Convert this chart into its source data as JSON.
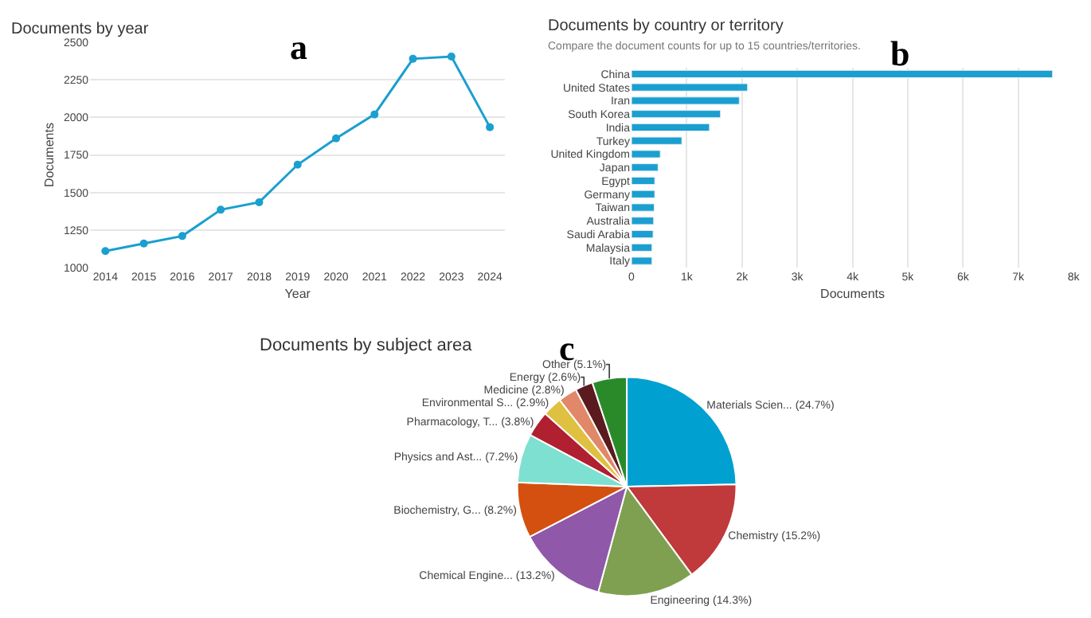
{
  "chart_data": [
    {
      "type": "line",
      "title": "Documents by year",
      "xlabel": "Year",
      "ylabel": "Documents",
      "annotations": [
        "a"
      ],
      "categories": [
        "2014",
        "2015",
        "2016",
        "2017",
        "2018",
        "2019",
        "2020",
        "2021",
        "2022",
        "2023",
        "2024"
      ],
      "series": [
        {
          "color": "#1a9fd0",
          "values": [
            1110,
            1160,
            1210,
            1385,
            1435,
            1685,
            1860,
            2020,
            2390,
            2405,
            1935
          ]
        }
      ],
      "ylim": [
        1000,
        2500
      ],
      "yticks": [
        1000,
        1250,
        1500,
        1750,
        2000,
        2250,
        2500
      ],
      "grid": "y",
      "marker": "circle"
    },
    {
      "type": "bar",
      "orientation": "horizontal",
      "title": "Documents by country or territory",
      "subtitle": "Compare the document counts for up to 15 countries/territories.",
      "xlabel": "Documents",
      "annotations": [
        "b"
      ],
      "categories": [
        "China",
        "United States",
        "Iran",
        "South Korea",
        "India",
        "Turkey",
        "United Kingdom",
        "Japan",
        "Egypt",
        "Germany",
        "Taiwan",
        "Australia",
        "Saudi Arabia",
        "Malaysia",
        "Italy"
      ],
      "series": [
        {
          "color": "#1a9fd0",
          "values": [
            7620,
            2100,
            1950,
            1610,
            1410,
            910,
            520,
            480,
            420,
            420,
            410,
            400,
            390,
            370,
            370
          ]
        }
      ],
      "xlim": [
        0,
        8000
      ],
      "xticks": [
        0,
        {
          "value": 1000,
          "label": "1k"
        },
        {
          "value": 2000,
          "label": "2k"
        },
        {
          "value": 3000,
          "label": "3k"
        },
        {
          "value": 4000,
          "label": "4k"
        },
        {
          "value": 5000,
          "label": "5k"
        },
        {
          "value": 6000,
          "label": "6k"
        },
        {
          "value": 7000,
          "label": "7k"
        },
        {
          "value": 8000,
          "label": "8k"
        }
      ],
      "grid": "x"
    },
    {
      "type": "pie",
      "title": "Documents by subject area",
      "annotations": [
        "c"
      ],
      "categories": [
        "Materials Scien... (24.7%)",
        "Chemistry (15.2%)",
        "Engineering (14.3%)",
        "Chemical Engine... (13.2%)",
        "Biochemistry, G... (8.2%)",
        "Physics and Ast... (7.2%)",
        "Pharmacology, T... (3.8%)",
        "Environmental S... (2.9%)",
        "Medicine (2.8%)",
        "Energy (2.6%)",
        "Other (5.1%)"
      ],
      "values": [
        24.7,
        15.2,
        14.3,
        13.2,
        8.2,
        7.2,
        3.8,
        2.9,
        2.8,
        2.6,
        5.1
      ],
      "colors": [
        "#00a0d0",
        "#c0393b",
        "#7fa050",
        "#9058a8",
        "#d45010",
        "#7ee0d0",
        "#b02030",
        "#e0c040",
        "#e08868",
        "#5a1a1e",
        "#2a8a2a"
      ]
    }
  ]
}
